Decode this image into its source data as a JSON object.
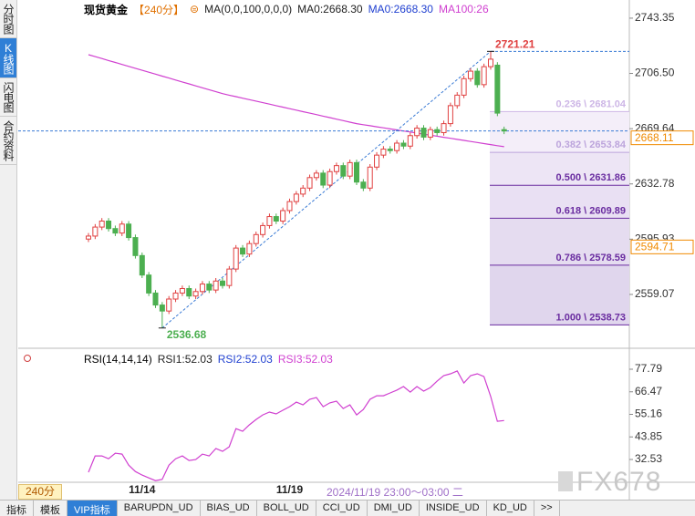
{
  "sidebar_tabs": [
    {
      "text": "分时图",
      "active": false
    },
    {
      "text": "K线图",
      "active": true
    },
    {
      "text": "闪电图",
      "active": false
    },
    {
      "text": "合约资料",
      "active": false
    }
  ],
  "chart_data": [
    {
      "type": "candlestick",
      "title": "现货黄金",
      "period": "【240分】",
      "legend": [
        {
          "text": "MA(0,0,100,0,0,0)",
          "color": "#222222"
        },
        {
          "text": "MA0:2668.30",
          "color": "#222222"
        },
        {
          "text": "MA0:2668.30",
          "color": "#1f3fd0"
        },
        {
          "text": "MA100:26",
          "color": "#d040d0"
        }
      ],
      "categories": [
        null,
        null,
        null,
        null,
        null,
        null,
        null,
        null,
        "11/14",
        null,
        null,
        null,
        null,
        null,
        null,
        null,
        null,
        null,
        null,
        null,
        null,
        null,
        null,
        null,
        null,
        null,
        null,
        null,
        null,
        null,
        "11/19",
        null,
        null,
        null,
        null,
        null,
        null,
        null,
        null,
        null,
        null,
        null,
        null,
        null,
        null,
        null,
        null,
        null,
        null,
        null,
        null,
        null,
        null,
        null,
        null,
        null,
        null,
        null,
        null,
        null,
        null,
        null,
        null
      ],
      "open": [
        2596,
        2598,
        2604,
        2608,
        2603,
        2600,
        2606,
        2597,
        2585,
        2572,
        2560,
        2552,
        2548,
        2556,
        2560,
        2563,
        2558,
        2561,
        2566,
        2562,
        2568,
        2565,
        2576,
        2590,
        2586,
        2593,
        2599,
        2605,
        2611,
        2608,
        2615,
        2621,
        2626,
        2630,
        2637,
        2640,
        2632,
        2641,
        2645,
        2638,
        2647,
        2634,
        2630,
        2644,
        2652,
        2656,
        2655,
        2660,
        2658,
        2665,
        2670,
        2664,
        2669,
        2667,
        2673,
        2685,
        2692,
        2703,
        2708,
        2699,
        2711,
        2712,
        2669
      ],
      "high": [
        2600,
        2606,
        2610,
        2610,
        2605,
        2608,
        2608,
        2599,
        2587,
        2574,
        2562,
        2554,
        2558,
        2562,
        2565,
        2565,
        2563,
        2568,
        2568,
        2570,
        2570,
        2578,
        2592,
        2592,
        2595,
        2601,
        2607,
        2613,
        2613,
        2617,
        2623,
        2628,
        2632,
        2639,
        2642,
        2642,
        2643,
        2647,
        2647,
        2649,
        2649,
        2636,
        2646,
        2654,
        2658,
        2658,
        2662,
        2662,
        2667,
        2672,
        2672,
        2671,
        2671,
        2675,
        2687,
        2694,
        2705,
        2710,
        2710,
        2713,
        2721.21,
        2714,
        2671
      ],
      "low": [
        2594,
        2596,
        2602,
        2601,
        2598,
        2598,
        2595,
        2583,
        2570,
        2558,
        2550,
        2536.68,
        2546,
        2554,
        2558,
        2556,
        2556,
        2559,
        2560,
        2560,
        2563,
        2563,
        2574,
        2584,
        2584,
        2591,
        2597,
        2603,
        2606,
        2606,
        2613,
        2619,
        2624,
        2628,
        2635,
        2630,
        2630,
        2639,
        2636,
        2636,
        2632,
        2628,
        2628,
        2642,
        2650,
        2653,
        2653,
        2656,
        2656,
        2663,
        2662,
        2662,
        2665,
        2665,
        2671,
        2683,
        2690,
        2701,
        2697,
        2697,
        2709,
        2678,
        2666
      ],
      "close": [
        2598,
        2604,
        2608,
        2603,
        2600,
        2606,
        2597,
        2585,
        2572,
        2560,
        2552,
        2548,
        2556,
        2560,
        2563,
        2558,
        2561,
        2566,
        2562,
        2568,
        2565,
        2576,
        2590,
        2586,
        2593,
        2599,
        2605,
        2611,
        2608,
        2615,
        2621,
        2626,
        2630,
        2637,
        2640,
        2632,
        2641,
        2645,
        2638,
        2647,
        2634,
        2630,
        2644,
        2652,
        2656,
        2655,
        2660,
        2658,
        2665,
        2670,
        2664,
        2669,
        2667,
        2673,
        2685,
        2692,
        2703,
        2708,
        2699,
        2711,
        2716,
        2680,
        2668.11
      ],
      "up_color": "#e04040",
      "down_color": "#4caf50",
      "series": [
        {
          "color": "#d040d0",
          "values": [
            2719.0,
            2717.7,
            2716.4,
            2715.1,
            2713.8,
            2712.5,
            2711.2,
            2709.9,
            2708.6,
            2707.3,
            2706.0,
            2704.7,
            2703.4,
            2702.1,
            2700.8,
            2699.5,
            2698.2,
            2696.9,
            2695.6,
            2694.3,
            2693.0,
            2692.0,
            2691.0,
            2690.0,
            2689.0,
            2688.0,
            2687.0,
            2686.0,
            2685.0,
            2684.0,
            2683.0,
            2682.0,
            2681.0,
            2680.0,
            2679.0,
            2678.0,
            2677.0,
            2676.0,
            2675.0,
            2674.0,
            2673.0,
            2672.3,
            2671.6,
            2670.9,
            2670.2,
            2669.5,
            2668.8,
            2668.1,
            2667.4,
            2666.7,
            2666.0,
            2665.3,
            2664.6,
            2663.9,
            2663.2,
            2662.5,
            2661.8,
            2661.1,
            2660.4,
            2659.7,
            2659.0,
            2658.3,
            2657.6
          ]
        }
      ],
      "ylim": [
        2525.6,
        2750.6
      ],
      "yticks": [
        2559.07,
        2595.93,
        2632.78,
        2669.64,
        {
          "value": 2706.5,
          "label": "2706.50"
        },
        2743.35
      ],
      "current_price": 2668.11,
      "price_tags": [
        2594.71
      ],
      "annotations": [
        {
          "value": 2721.21,
          "color": "#e04040"
        },
        {
          "value": 2536.68,
          "color": "#4caf50"
        }
      ],
      "fibonacci": [
        {
          "label": "0.236 \\ 2681.04",
          "value": 2681.04,
          "color": "#cdb6e6",
          "fill": "#f4eef9"
        },
        {
          "label": "0.382 \\ 2653.84",
          "value": 2653.84,
          "color": "#bca4dc",
          "fill": "#ede5f5"
        },
        {
          "label": "0.500 \\ 2631.86",
          "value": 2631.86,
          "color": "#6a2da0",
          "fill": "#e9e0f3"
        },
        {
          "label": "0.618 \\ 2609.89",
          "value": 2609.89,
          "color": "#6a2da0",
          "fill": "#e5dcf0"
        },
        {
          "label": "0.786 \\ 2578.59",
          "value": 2578.59,
          "color": "#6a2da0",
          "fill": "#e0d6ed"
        },
        {
          "label": "1.000 \\ 2538.73",
          "value": 2538.73,
          "color": "#6a2da0"
        }
      ]
    },
    {
      "type": "line",
      "title": "RSI(14,14,14)",
      "legend": [
        {
          "text": "RSI1:52.03",
          "color": "#222222"
        },
        {
          "text": "RSI2:52.03",
          "color": "#1f3fd0"
        },
        {
          "text": "RSI3:52.03",
          "color": "#d040d0"
        }
      ],
      "series": [
        {
          "color": "#d040d0",
          "values": [
            26.1,
            34.3,
            34.3,
            32.9,
            35.7,
            35.2,
            29.7,
            26.5,
            24.7,
            23.3,
            21.9,
            22.5,
            29.7,
            32.9,
            34.3,
            32.0,
            32.5,
            35.2,
            34.3,
            38.0,
            36.6,
            38.9,
            48.0,
            46.7,
            49.9,
            52.6,
            54.9,
            56.3,
            55.4,
            57.2,
            59.0,
            61.3,
            59.9,
            62.7,
            63.6,
            59.0,
            60.9,
            61.8,
            58.1,
            59.9,
            54.9,
            57.6,
            62.7,
            64.5,
            64.5,
            65.9,
            67.3,
            69.1,
            66.3,
            69.1,
            66.8,
            68.6,
            71.8,
            74.6,
            75.5,
            76.9,
            70.9,
            74.6,
            75.5,
            74.1,
            64.1,
            51.7,
            52.03
          ]
        }
      ],
      "ylim": [
        21.55,
        84.65
      ],
      "yticks": [
        32.53,
        43.85,
        55.16,
        66.47,
        77.79
      ]
    }
  ],
  "bottom_bar": {
    "period": "240分",
    "status": "2024/11/19 23:00～03:00 二"
  },
  "indicator_tabs": [
    {
      "text": "指标",
      "active": false
    },
    {
      "text": "模板",
      "active": false
    },
    {
      "text": "VIP指标",
      "active": true
    },
    {
      "text": "BARUPDN_UD",
      "active": false
    },
    {
      "text": "BIAS_UD",
      "active": false
    },
    {
      "text": "BOLL_UD",
      "active": false
    },
    {
      "text": "CCI_UD",
      "active": false
    },
    {
      "text": "DMI_UD",
      "active": false
    },
    {
      "text": "INSIDE_UD",
      "active": false
    },
    {
      "text": "KD_UD",
      "active": false
    },
    {
      "text": ">>",
      "active": false
    }
  ],
  "watermark": "FX678"
}
